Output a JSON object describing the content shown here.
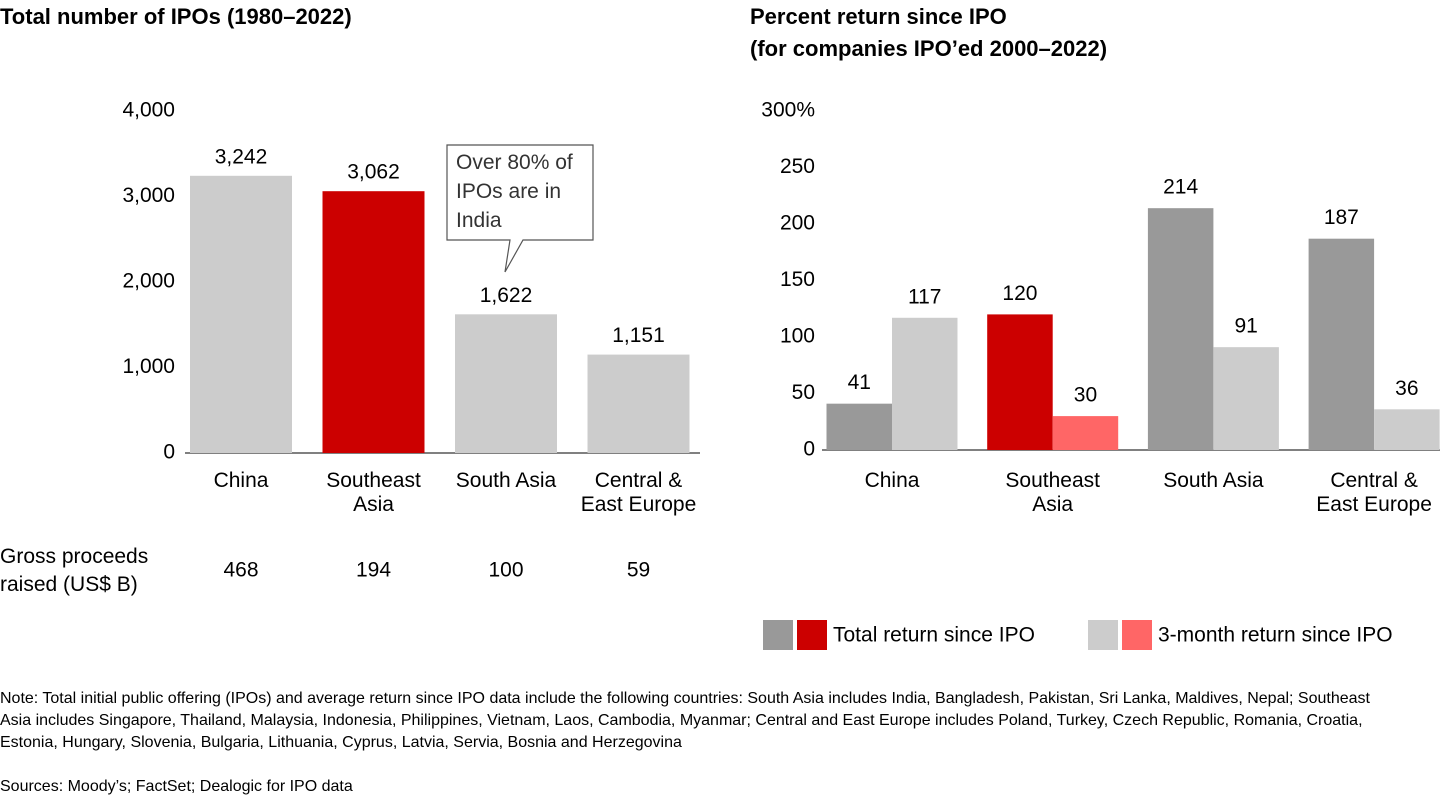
{
  "charts": [
    {
      "chart_data": {
        "type": "bar",
        "title": "Total number of IPOs (1980–2022)",
        "categories": [
          "China",
          "Southeast Asia",
          "South Asia",
          "Central & East Europe"
        ],
        "values": [
          3242,
          3062,
          1622,
          1151
        ],
        "value_labels": [
          "3,242",
          "3,062",
          "1,622",
          "1,151"
        ],
        "color": "#cccccc",
        "highlight_color": "#cc0000",
        "highlight_index": 1,
        "ylim": [
          0,
          4000
        ],
        "yticks": [
          0,
          {
            "value": 1000,
            "label": "1,000"
          },
          {
            "value": 2000,
            "label": "2,000"
          },
          {
            "value": 3000,
            "label": "3,000"
          },
          {
            "value": 4000,
            "label": "4,000"
          }
        ],
        "annotation": "Over 80% of IPOs are in India",
        "row_label": "Gross proceeds raised (US$ B)",
        "row_values": [
          468,
          194,
          100,
          59
        ]
      }
    },
    {
      "chart_data": {
        "type": "grouped_bar",
        "title": "Percent return since IPO",
        "subtitle": "(for companies IPO’ed 2000–2022)",
        "categories": [
          "China",
          "Southeast Asia",
          "South Asia",
          "Central & East Europe"
        ],
        "highlight_index": 1,
        "series": [
          {
            "name": "Total return since IPO",
            "color": "#999999",
            "highlight_color": "#cc0000",
            "values": [
              41,
              120,
              214,
              187
            ]
          },
          {
            "name": "3-month return since IPO",
            "color": "#cccccc",
            "highlight_color": "#ff6666",
            "values": [
              117,
              30,
              91,
              36
            ]
          }
        ],
        "ylim": [
          0,
          300
        ],
        "yticks": [
          0,
          50,
          100,
          150,
          200,
          250,
          {
            "value": 300,
            "label": "300%"
          }
        ]
      }
    }
  ],
  "footer": {
    "note": "Note: Total initial public offering (IPOs) and average return since IPO data include the following countries: South Asia includes India, Bangladesh, Pakistan, Sri Lanka, Maldives, Nepal; Southeast Asia includes Singapore, Thailand, Malaysia, Indonesia, Philippines, Vietnam, Laos, Cambodia, Myanmar; Central and East Europe includes Poland, Turkey, Czech Republic, Romania, Croatia, Estonia, Hungary, Slovenia, Bulgaria, Lithuania, Cyprus, Latvia, Servia, Bosnia and Herzegovina",
    "sources": "Sources: Moody’s; FactSet; Dealogic for IPO data"
  }
}
